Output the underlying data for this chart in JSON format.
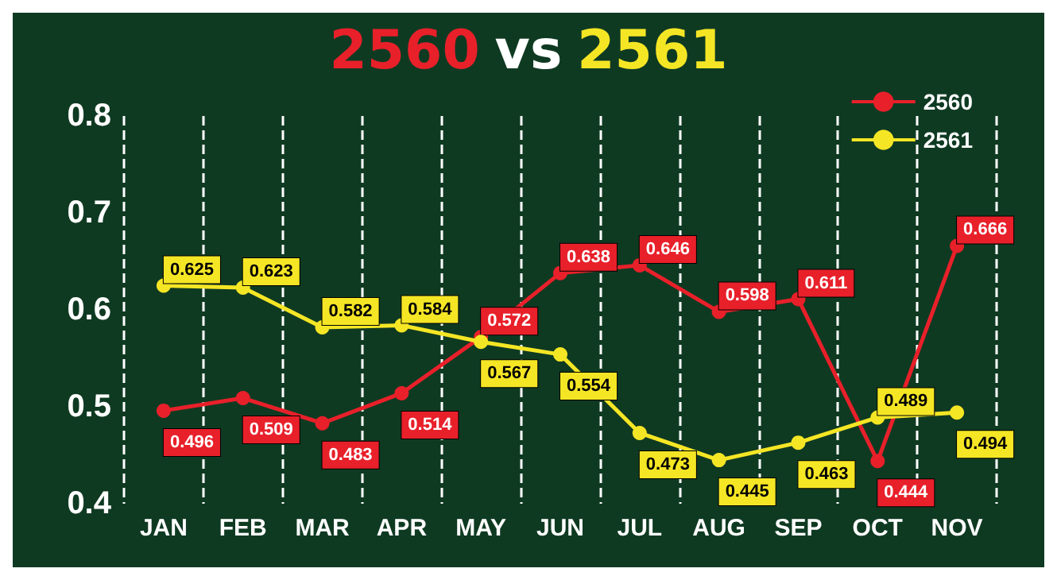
{
  "chart_data": {
    "type": "line",
    "title": "2560 vs 2561",
    "categories": [
      "JAN",
      "FEB",
      "MAR",
      "APR",
      "MAY",
      "JUN",
      "JUL",
      "AUG",
      "SEP",
      "OCT",
      "NOV"
    ],
    "series": [
      {
        "name": "2560",
        "color": "#e8202a",
        "values": [
          0.496,
          0.509,
          0.483,
          0.514,
          0.572,
          0.638,
          0.646,
          0.598,
          0.611,
          0.444,
          0.666
        ]
      },
      {
        "name": "2561",
        "color": "#f5e625",
        "values": [
          0.625,
          0.623,
          0.582,
          0.584,
          0.567,
          0.554,
          0.473,
          0.445,
          0.463,
          0.489,
          0.494
        ]
      }
    ],
    "ylim": [
      0.4,
      0.8
    ],
    "yticks": [
      0.4,
      0.5,
      0.6,
      0.7,
      0.8
    ],
    "grid": "x",
    "legend": "top right",
    "marker": "circle",
    "line_style": "solid",
    "data_labels": true
  }
}
